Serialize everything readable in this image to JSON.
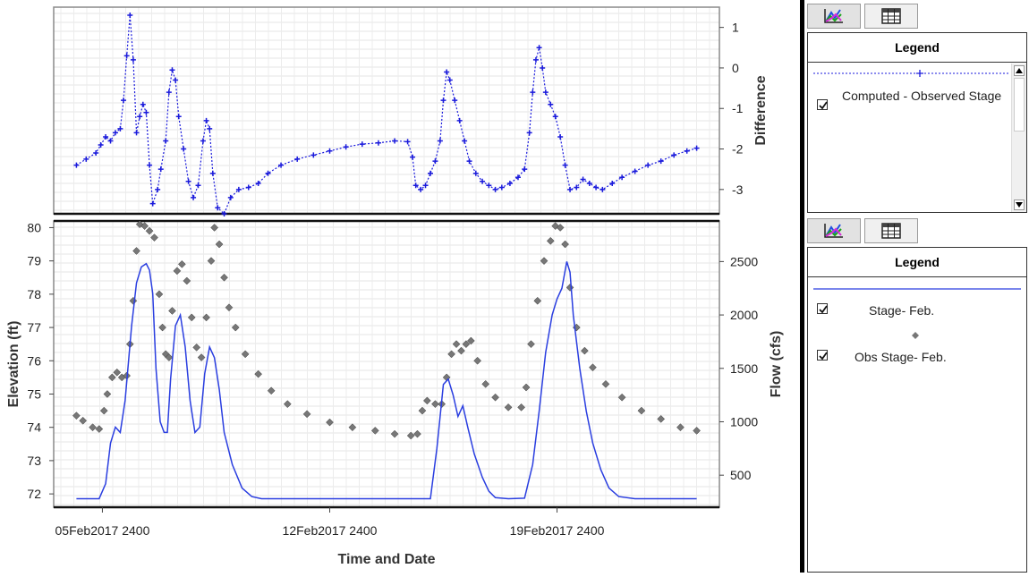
{
  "chart_data": [
    {
      "type": "scatter",
      "title": "",
      "xlabel": "",
      "ylabel": "Difference",
      "ylim": [
        -3.6,
        1.5
      ],
      "yticks": [
        1,
        0,
        -1,
        -2,
        -3
      ],
      "grid": true,
      "series": [
        {
          "name": "Computed - Observed Stage",
          "color": "#1a1adc",
          "marker": "plus",
          "line": "dotted",
          "points": [
            [
              5.2,
              -2.4
            ],
            [
              5.5,
              -2.25
            ],
            [
              5.8,
              -2.1
            ],
            [
              5.95,
              -1.9
            ],
            [
              6.1,
              -1.7
            ],
            [
              6.25,
              -1.8
            ],
            [
              6.4,
              -1.6
            ],
            [
              6.55,
              -1.5
            ],
            [
              6.65,
              -0.8
            ],
            [
              6.75,
              0.3
            ],
            [
              6.85,
              1.3
            ],
            [
              6.95,
              0.2
            ],
            [
              7.05,
              -1.6
            ],
            [
              7.15,
              -1.2
            ],
            [
              7.25,
              -0.9
            ],
            [
              7.35,
              -1.1
            ],
            [
              7.45,
              -2.4
            ],
            [
              7.55,
              -3.35
            ],
            [
              7.7,
              -3.0
            ],
            [
              7.8,
              -2.5
            ],
            [
              7.95,
              -1.8
            ],
            [
              8.05,
              -0.6
            ],
            [
              8.15,
              -0.05
            ],
            [
              8.25,
              -0.3
            ],
            [
              8.35,
              -1.2
            ],
            [
              8.5,
              -2.0
            ],
            [
              8.65,
              -2.8
            ],
            [
              8.8,
              -3.2
            ],
            [
              8.95,
              -2.9
            ],
            [
              9.1,
              -1.8
            ],
            [
              9.2,
              -1.3
            ],
            [
              9.3,
              -1.5
            ],
            [
              9.4,
              -2.6
            ],
            [
              9.55,
              -3.45
            ],
            [
              9.75,
              -3.6
            ],
            [
              9.95,
              -3.2
            ],
            [
              10.2,
              -3.0
            ],
            [
              10.5,
              -2.95
            ],
            [
              10.8,
              -2.85
            ],
            [
              11.1,
              -2.6
            ],
            [
              11.5,
              -2.4
            ],
            [
              12.0,
              -2.25
            ],
            [
              12.5,
              -2.15
            ],
            [
              13.0,
              -2.05
            ],
            [
              13.5,
              -1.95
            ],
            [
              14.0,
              -1.88
            ],
            [
              14.5,
              -1.85
            ],
            [
              15.0,
              -1.8
            ],
            [
              15.4,
              -1.82
            ],
            [
              15.55,
              -2.2
            ],
            [
              15.65,
              -2.9
            ],
            [
              15.8,
              -3.0
            ],
            [
              15.95,
              -2.9
            ],
            [
              16.1,
              -2.6
            ],
            [
              16.25,
              -2.3
            ],
            [
              16.4,
              -1.8
            ],
            [
              16.5,
              -0.8
            ],
            [
              16.6,
              -0.1
            ],
            [
              16.7,
              -0.3
            ],
            [
              16.85,
              -0.8
            ],
            [
              17.0,
              -1.3
            ],
            [
              17.15,
              -1.8
            ],
            [
              17.3,
              -2.3
            ],
            [
              17.5,
              -2.6
            ],
            [
              17.7,
              -2.8
            ],
            [
              17.9,
              -2.9
            ],
            [
              18.1,
              -3.0
            ],
            [
              18.3,
              -2.95
            ],
            [
              18.55,
              -2.85
            ],
            [
              18.8,
              -2.7
            ],
            [
              19.0,
              -2.5
            ],
            [
              19.15,
              -1.6
            ],
            [
              19.25,
              -0.6
            ],
            [
              19.35,
              0.2
            ],
            [
              19.45,
              0.5
            ],
            [
              19.55,
              0.0
            ],
            [
              19.65,
              -0.6
            ],
            [
              19.8,
              -0.9
            ],
            [
              19.95,
              -1.2
            ],
            [
              20.1,
              -1.7
            ],
            [
              20.25,
              -2.4
            ],
            [
              20.4,
              -3.0
            ],
            [
              20.6,
              -2.95
            ],
            [
              20.8,
              -2.75
            ],
            [
              21.0,
              -2.85
            ],
            [
              21.2,
              -2.95
            ],
            [
              21.4,
              -3.0
            ],
            [
              21.7,
              -2.85
            ],
            [
              22.0,
              -2.7
            ],
            [
              22.4,
              -2.55
            ],
            [
              22.8,
              -2.4
            ],
            [
              23.2,
              -2.3
            ],
            [
              23.6,
              -2.15
            ],
            [
              24.0,
              -2.05
            ],
            [
              24.3,
              -1.98
            ]
          ]
        }
      ]
    },
    {
      "type": "line",
      "title": "",
      "xlabel": "Time and Date",
      "ylabel": "Elevation (ft)",
      "y2label": "Flow (cfs)",
      "ylim": [
        71.6,
        80.2
      ],
      "yticks": [
        72,
        73,
        74,
        75,
        76,
        77,
        78,
        79,
        80
      ],
      "y2lim": [
        200,
        2880
      ],
      "y2ticks": [
        500,
        1000,
        1500,
        2000,
        2500
      ],
      "xlim": [
        4.5,
        25.0
      ],
      "xticks": [
        {
          "x": 6.0,
          "label": "05Feb2017 2400"
        },
        {
          "x": 13.0,
          "label": "12Feb2017 2400"
        },
        {
          "x": 20.0,
          "label": "19Feb2017 2400"
        }
      ],
      "grid": true,
      "series": [
        {
          "name": "Stage- Feb.",
          "axis": "right",
          "color": "#2a3ee0",
          "points": [
            [
              5.2,
              280
            ],
            [
              5.5,
              280
            ],
            [
              5.9,
              280
            ],
            [
              6.1,
              420
            ],
            [
              6.25,
              800
            ],
            [
              6.4,
              950
            ],
            [
              6.55,
              900
            ],
            [
              6.7,
              1200
            ],
            [
              6.9,
              1900
            ],
            [
              7.05,
              2300
            ],
            [
              7.2,
              2450
            ],
            [
              7.35,
              2480
            ],
            [
              7.45,
              2420
            ],
            [
              7.55,
              2200
            ],
            [
              7.65,
              1500
            ],
            [
              7.78,
              1000
            ],
            [
              7.9,
              900
            ],
            [
              8.0,
              900
            ],
            [
              8.1,
              1400
            ],
            [
              8.25,
              1900
            ],
            [
              8.4,
              2000
            ],
            [
              8.55,
              1700
            ],
            [
              8.7,
              1200
            ],
            [
              8.85,
              900
            ],
            [
              9.0,
              950
            ],
            [
              9.15,
              1450
            ],
            [
              9.3,
              1700
            ],
            [
              9.45,
              1600
            ],
            [
              9.6,
              1300
            ],
            [
              9.75,
              900
            ],
            [
              10.0,
              600
            ],
            [
              10.3,
              380
            ],
            [
              10.6,
              300
            ],
            [
              10.9,
              280
            ],
            [
              12.0,
              280
            ],
            [
              13.0,
              280
            ],
            [
              14.0,
              280
            ],
            [
              15.0,
              280
            ],
            [
              15.8,
              280
            ],
            [
              16.1,
              280
            ],
            [
              16.3,
              750
            ],
            [
              16.5,
              1350
            ],
            [
              16.65,
              1400
            ],
            [
              16.8,
              1250
            ],
            [
              16.95,
              1050
            ],
            [
              17.1,
              1150
            ],
            [
              17.25,
              950
            ],
            [
              17.45,
              700
            ],
            [
              17.7,
              480
            ],
            [
              17.9,
              350
            ],
            [
              18.1,
              290
            ],
            [
              18.5,
              280
            ],
            [
              19.0,
              285
            ],
            [
              19.25,
              600
            ],
            [
              19.45,
              1100
            ],
            [
              19.65,
              1650
            ],
            [
              19.85,
              2000
            ],
            [
              20.0,
              2150
            ],
            [
              20.15,
              2250
            ],
            [
              20.3,
              2500
            ],
            [
              20.4,
              2400
            ],
            [
              20.5,
              2000
            ],
            [
              20.7,
              1500
            ],
            [
              20.9,
              1100
            ],
            [
              21.1,
              800
            ],
            [
              21.35,
              550
            ],
            [
              21.6,
              380
            ],
            [
              21.9,
              300
            ],
            [
              22.4,
              280
            ],
            [
              23.5,
              280
            ],
            [
              24.3,
              280
            ]
          ]
        },
        {
          "name": "Obs Stage- Feb.",
          "axis": "left",
          "color": "#777777",
          "marker": "diamond",
          "points": [
            [
              5.2,
              74.35
            ],
            [
              5.4,
              74.2
            ],
            [
              5.7,
              74.0
            ],
            [
              5.9,
              73.95
            ],
            [
              6.05,
              74.5
            ],
            [
              6.15,
              75.0
            ],
            [
              6.3,
              75.5
            ],
            [
              6.45,
              75.65
            ],
            [
              6.6,
              75.5
            ],
            [
              6.75,
              75.55
            ],
            [
              6.85,
              76.5
            ],
            [
              6.95,
              77.8
            ],
            [
              7.05,
              79.3
            ],
            [
              7.15,
              80.1
            ],
            [
              7.3,
              80.05
            ],
            [
              7.45,
              79.9
            ],
            [
              7.6,
              79.7
            ],
            [
              7.75,
              78.0
            ],
            [
              7.85,
              77.0
            ],
            [
              7.95,
              76.2
            ],
            [
              8.05,
              76.1
            ],
            [
              8.15,
              77.5
            ],
            [
              8.3,
              78.7
            ],
            [
              8.45,
              78.9
            ],
            [
              8.6,
              78.4
            ],
            [
              8.75,
              77.3
            ],
            [
              8.9,
              76.4
            ],
            [
              9.05,
              76.1
            ],
            [
              9.2,
              77.3
            ],
            [
              9.35,
              79.0
            ],
            [
              9.45,
              80.0
            ],
            [
              9.6,
              79.5
            ],
            [
              9.75,
              78.5
            ],
            [
              9.9,
              77.6
            ],
            [
              10.1,
              77.0
            ],
            [
              10.4,
              76.2
            ],
            [
              10.8,
              75.6
            ],
            [
              11.2,
              75.1
            ],
            [
              11.7,
              74.7
            ],
            [
              12.3,
              74.4
            ],
            [
              13.0,
              74.15
            ],
            [
              13.7,
              74.0
            ],
            [
              14.4,
              73.9
            ],
            [
              15.0,
              73.8
            ],
            [
              15.5,
              73.75
            ],
            [
              15.7,
              73.8
            ],
            [
              15.85,
              74.5
            ],
            [
              16.0,
              74.8
            ],
            [
              16.25,
              74.7
            ],
            [
              16.45,
              74.7
            ],
            [
              16.6,
              75.5
            ],
            [
              16.75,
              76.2
            ],
            [
              16.9,
              76.5
            ],
            [
              17.05,
              76.3
            ],
            [
              17.2,
              76.5
            ],
            [
              17.35,
              76.6
            ],
            [
              17.55,
              76.0
            ],
            [
              17.8,
              75.3
            ],
            [
              18.1,
              74.9
            ],
            [
              18.5,
              74.6
            ],
            [
              18.9,
              74.6
            ],
            [
              19.05,
              75.2
            ],
            [
              19.2,
              76.5
            ],
            [
              19.4,
              77.8
            ],
            [
              19.6,
              79.0
            ],
            [
              19.8,
              79.6
            ],
            [
              19.95,
              80.05
            ],
            [
              20.1,
              80.0
            ],
            [
              20.25,
              79.5
            ],
            [
              20.4,
              78.2
            ],
            [
              20.6,
              77.0
            ],
            [
              20.85,
              76.3
            ],
            [
              21.1,
              75.8
            ],
            [
              21.5,
              75.3
            ],
            [
              22.0,
              74.9
            ],
            [
              22.6,
              74.5
            ],
            [
              23.2,
              74.25
            ],
            [
              23.8,
              74.0
            ],
            [
              24.3,
              73.9
            ]
          ]
        }
      ]
    }
  ],
  "legend_panels": {
    "top": {
      "title": "Legend",
      "entries": [
        {
          "label": "Computed - Observed Stage",
          "checked": true,
          "color": "#1a1adc"
        }
      ]
    },
    "bottom": {
      "title": "Legend",
      "entries": [
        {
          "label": "Stage- Feb.",
          "checked": true,
          "color": "#2a3ee0"
        },
        {
          "label": "Obs Stage- Feb.",
          "checked": true,
          "color": "#777777"
        }
      ]
    }
  },
  "icons": {
    "plot_tab": "chart-icon",
    "table_tab": "table-icon"
  }
}
